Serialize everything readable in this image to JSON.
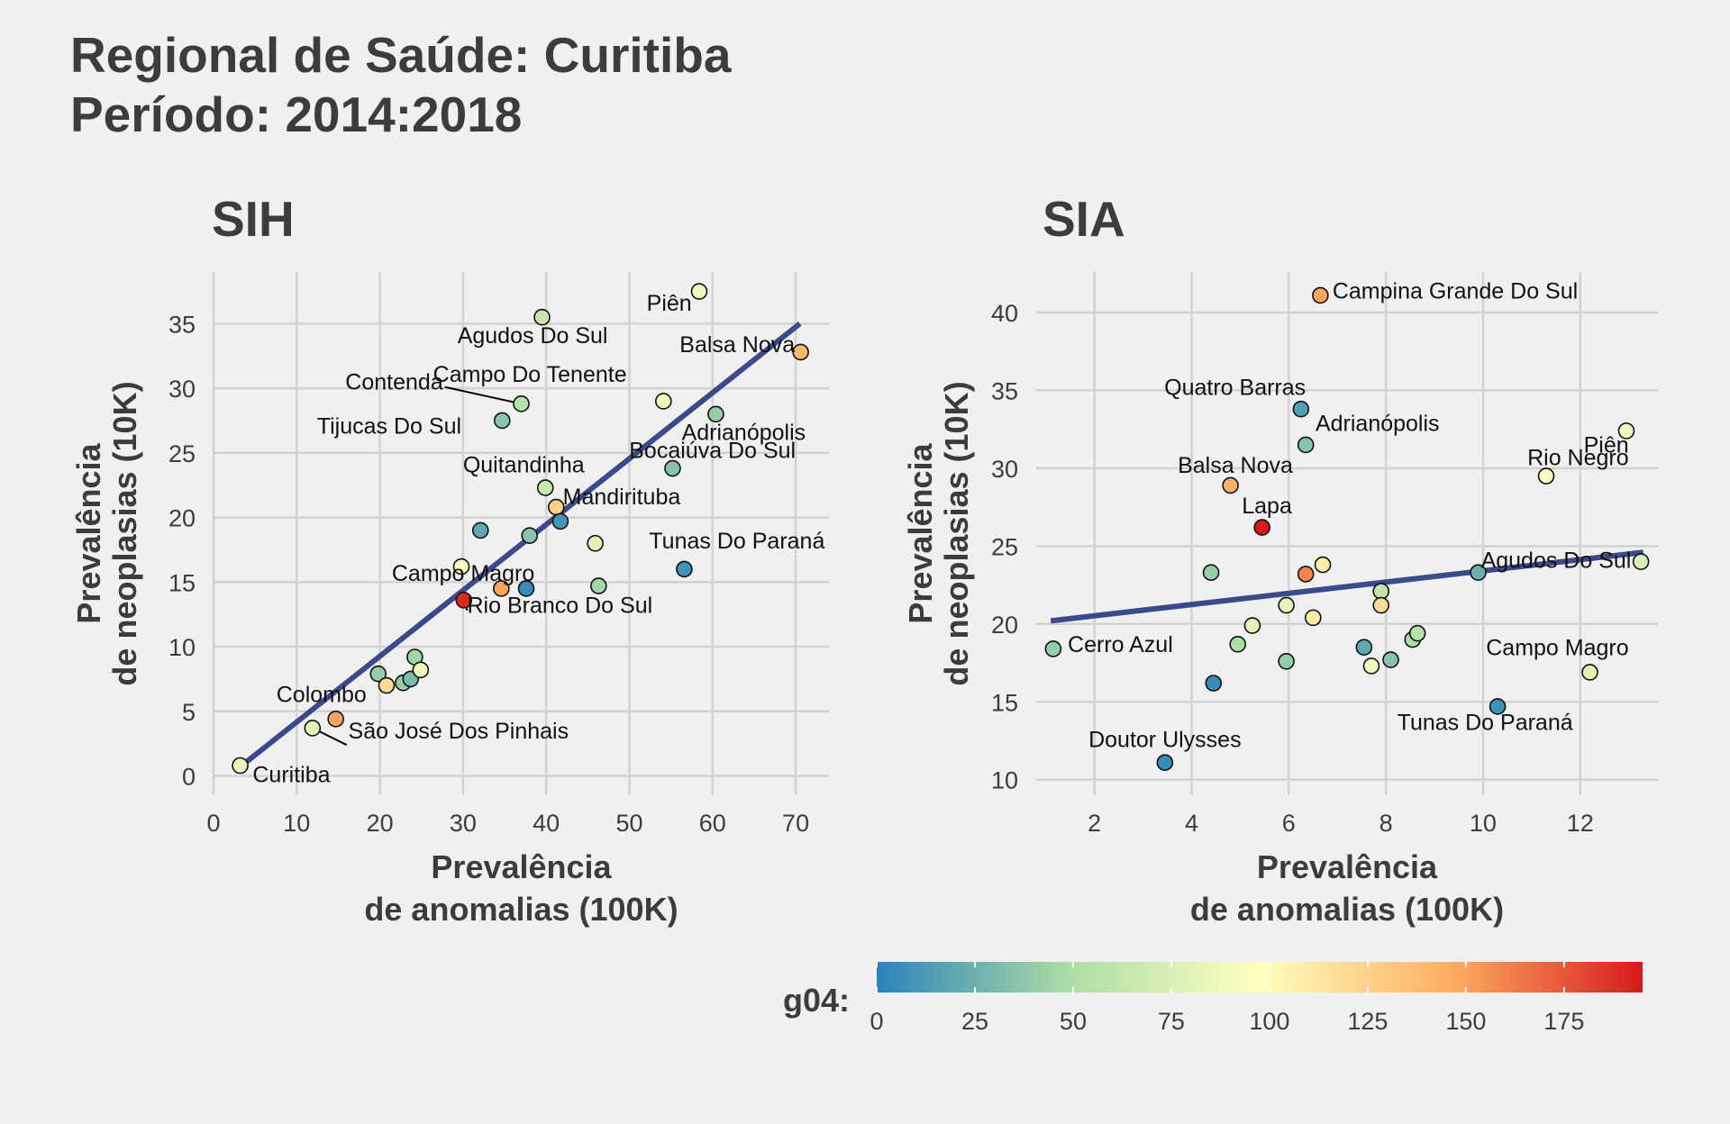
{
  "title_line1": "Regional de Saúde: Curitiba",
  "title_line2": "Período: 2014:2018",
  "legend": {
    "title": "g04:",
    "ticks": [
      0,
      25,
      50,
      75,
      100,
      125,
      150,
      175
    ],
    "range": [
      0,
      195
    ],
    "colors": [
      "#2b83ba",
      "#abdda4",
      "#ffffbf",
      "#fdae61",
      "#d7191c"
    ]
  },
  "chart_data": [
    {
      "type": "scatter",
      "title": "SIH",
      "xlabel": "Prevalência\nde anomalias (100K)",
      "ylabel": "Prevalência\nde neoplasias (10K)",
      "xlim": [
        0,
        74
      ],
      "ylim": [
        -1.5,
        39
      ],
      "xticks": [
        0,
        10,
        20,
        30,
        40,
        50,
        60,
        70
      ],
      "yticks": [
        0,
        5,
        10,
        15,
        20,
        25,
        30,
        35
      ],
      "trend": {
        "x1": 3.2,
        "y1": 0.7,
        "x2": 70.5,
        "y2": 35
      },
      "points": [
        {
          "x": 3.2,
          "y": 0.8,
          "g": 85
        },
        {
          "x": 11.9,
          "y": 3.7,
          "g": 80
        },
        {
          "x": 14.7,
          "y": 4.4,
          "g": 150
        },
        {
          "x": 19.8,
          "y": 7.9,
          "g": 40
        },
        {
          "x": 20.8,
          "y": 7.0,
          "g": 120
        },
        {
          "x": 22.8,
          "y": 7.2,
          "g": 40
        },
        {
          "x": 23.7,
          "y": 7.5,
          "g": 30
        },
        {
          "x": 24.2,
          "y": 9.2,
          "g": 45
        },
        {
          "x": 24.9,
          "y": 8.2,
          "g": 90
        },
        {
          "x": 29.8,
          "y": 16.2,
          "g": 95
        },
        {
          "x": 30.1,
          "y": 13.6,
          "g": 190
        },
        {
          "x": 32.1,
          "y": 19.0,
          "g": 20
        },
        {
          "x": 34.6,
          "y": 14.5,
          "g": 150
        },
        {
          "x": 34.7,
          "y": 27.5,
          "g": 35
        },
        {
          "x": 37.0,
          "y": 28.8,
          "g": 55
        },
        {
          "x": 37.6,
          "y": 14.5,
          "g": 5
        },
        {
          "x": 38.0,
          "y": 18.6,
          "g": 35
        },
        {
          "x": 39.5,
          "y": 35.5,
          "g": 65
        },
        {
          "x": 39.9,
          "y": 22.3,
          "g": 65
        },
        {
          "x": 41.2,
          "y": 20.8,
          "g": 125
        },
        {
          "x": 41.7,
          "y": 19.7,
          "g": 10
        },
        {
          "x": 45.9,
          "y": 18.0,
          "g": 80
        },
        {
          "x": 46.3,
          "y": 14.7,
          "g": 45
        },
        {
          "x": 54.1,
          "y": 29.0,
          "g": 90
        },
        {
          "x": 55.2,
          "y": 23.8,
          "g": 35
        },
        {
          "x": 56.6,
          "y": 16.0,
          "g": 8
        },
        {
          "x": 58.4,
          "y": 37.5,
          "g": 90
        },
        {
          "x": 60.4,
          "y": 28.0,
          "g": 40
        },
        {
          "x": 70.6,
          "y": 32.8,
          "g": 140
        }
      ],
      "labels": [
        {
          "text": "Curitiba",
          "x": 4.7,
          "y": -0.5,
          "anchor": "start"
        },
        {
          "text": "São José Dos Pinhais",
          "x": 16.2,
          "y": 2.9,
          "anchor": "start"
        },
        {
          "text": "Colombo",
          "x": 18.4,
          "y": 5.7,
          "anchor": "end"
        },
        {
          "text": "Campo Magro",
          "x": 38.6,
          "y": 15.1,
          "anchor": "end"
        },
        {
          "text": "Rio Branco Do Sul",
          "x": 30.5,
          "y": 12.6,
          "anchor": "start"
        },
        {
          "text": "Mandirituba",
          "x": 42.0,
          "y": 21.0,
          "anchor": "start"
        },
        {
          "text": "Tunas Do Paraná",
          "x": 73.5,
          "y": 17.6,
          "anchor": "end"
        },
        {
          "text": "Quitandinha",
          "x": 44.6,
          "y": 23.5,
          "anchor": "end"
        },
        {
          "text": "Bocaiúva Do Sul",
          "x": 70.0,
          "y": 24.6,
          "anchor": "end"
        },
        {
          "text": "Adrianópolis",
          "x": 71.2,
          "y": 26.0,
          "anchor": "end"
        },
        {
          "text": "Tijucas Do Sul",
          "x": 29.8,
          "y": 26.5,
          "anchor": "end"
        },
        {
          "text": "Campo Do Tenente",
          "x": 26.4,
          "y": 30.5,
          "anchor": "start"
        },
        {
          "text": "Contenda",
          "x": 27.6,
          "y": 29.9,
          "anchor": "end"
        },
        {
          "text": "Balsa Nova",
          "x": 69.9,
          "y": 32.8,
          "anchor": "end"
        },
        {
          "text": "Agudos Do Sul",
          "x": 47.4,
          "y": 33.5,
          "anchor": "end"
        },
        {
          "text": "Piên",
          "x": 57.5,
          "y": 36.0,
          "anchor": "end"
        }
      ],
      "leaders": [
        {
          "x1": 11.9,
          "y1": 3.7,
          "x2": 16.0,
          "y2": 2.4
        },
        {
          "x1": 30.1,
          "y1": 13.6,
          "x2": 30.5,
          "y2": 12.8
        },
        {
          "x1": 37.0,
          "y1": 28.8,
          "x2": 27.8,
          "y2": 30.1
        }
      ]
    },
    {
      "type": "scatter",
      "title": "SIA",
      "xlabel": "Prevalência\nde anomalias (100K)",
      "ylabel": "Prevalência\nde neoplasias (10K)",
      "xlim": [
        0.8,
        13.6
      ],
      "ylim": [
        9.0,
        42.6
      ],
      "xticks": [
        2,
        4,
        6,
        8,
        10,
        12
      ],
      "yticks": [
        10,
        15,
        20,
        25,
        30,
        35,
        40
      ],
      "trend": {
        "x1": 1.1,
        "y1": 20.2,
        "x2": 13.3,
        "y2": 24.6
      },
      "points": [
        {
          "x": 1.15,
          "y": 18.4,
          "g": 40
        },
        {
          "x": 3.45,
          "y": 11.1,
          "g": 5
        },
        {
          "x": 4.4,
          "y": 23.3,
          "g": 40
        },
        {
          "x": 4.45,
          "y": 16.2,
          "g": 5
        },
        {
          "x": 4.8,
          "y": 28.9,
          "g": 145
        },
        {
          "x": 4.95,
          "y": 18.7,
          "g": 50
        },
        {
          "x": 5.25,
          "y": 19.9,
          "g": 80
        },
        {
          "x": 5.45,
          "y": 26.2,
          "g": 195
        },
        {
          "x": 5.95,
          "y": 21.2,
          "g": 80
        },
        {
          "x": 5.95,
          "y": 17.6,
          "g": 40
        },
        {
          "x": 6.25,
          "y": 33.8,
          "g": 15
        },
        {
          "x": 6.35,
          "y": 31.5,
          "g": 35
        },
        {
          "x": 6.35,
          "y": 23.2,
          "g": 160
        },
        {
          "x": 6.5,
          "y": 20.4,
          "g": 110
        },
        {
          "x": 6.65,
          "y": 41.1,
          "g": 150
        },
        {
          "x": 6.7,
          "y": 23.8,
          "g": 110
        },
        {
          "x": 7.55,
          "y": 18.5,
          "g": 20
        },
        {
          "x": 7.7,
          "y": 17.3,
          "g": 90
        },
        {
          "x": 7.9,
          "y": 22.1,
          "g": 60
        },
        {
          "x": 7.9,
          "y": 21.2,
          "g": 120
        },
        {
          "x": 8.1,
          "y": 17.7,
          "g": 35
        },
        {
          "x": 8.55,
          "y": 19.0,
          "g": 50
        },
        {
          "x": 8.65,
          "y": 19.4,
          "g": 55
        },
        {
          "x": 9.9,
          "y": 23.3,
          "g": 25
        },
        {
          "x": 10.3,
          "y": 14.7,
          "g": 8
        },
        {
          "x": 11.3,
          "y": 29.5,
          "g": 95
        },
        {
          "x": 12.2,
          "y": 16.9,
          "g": 80
        },
        {
          "x": 12.95,
          "y": 32.4,
          "g": 90
        },
        {
          "x": 13.25,
          "y": 24.0,
          "g": 75
        }
      ],
      "labels": [
        {
          "text": "Campina Grande Do Sul",
          "x": 6.9,
          "y": 40.9,
          "anchor": "start"
        },
        {
          "text": "Quatro Barras",
          "x": 6.35,
          "y": 34.7,
          "anchor": "end"
        },
        {
          "text": "Adrianópolis",
          "x": 6.55,
          "y": 32.4,
          "anchor": "start"
        },
        {
          "text": "Balsa Nova",
          "x": 4.9,
          "y": 29.7,
          "anchor": "middle"
        },
        {
          "text": "Lapa",
          "x": 5.55,
          "y": 27.1,
          "anchor": "middle"
        },
        {
          "text": "Cerro Azul",
          "x": 1.45,
          "y": 18.2,
          "anchor": "start"
        },
        {
          "text": "Doutor Ulysses",
          "x": 3.45,
          "y": 12.1,
          "anchor": "middle"
        },
        {
          "text": "Piên",
          "x": 13.0,
          "y": 31.0,
          "anchor": "end"
        },
        {
          "text": "Rio Negro",
          "x": 13.0,
          "y": 30.2,
          "anchor": "end"
        },
        {
          "text": "Agudos Do Sul",
          "x": 13.05,
          "y": 23.6,
          "anchor": "end"
        },
        {
          "text": "Campo Magro",
          "x": 13.0,
          "y": 18.0,
          "anchor": "end"
        },
        {
          "text": "Tunas Do Paraná",
          "x": 11.85,
          "y": 13.2,
          "anchor": "end"
        }
      ],
      "leaders": []
    }
  ]
}
